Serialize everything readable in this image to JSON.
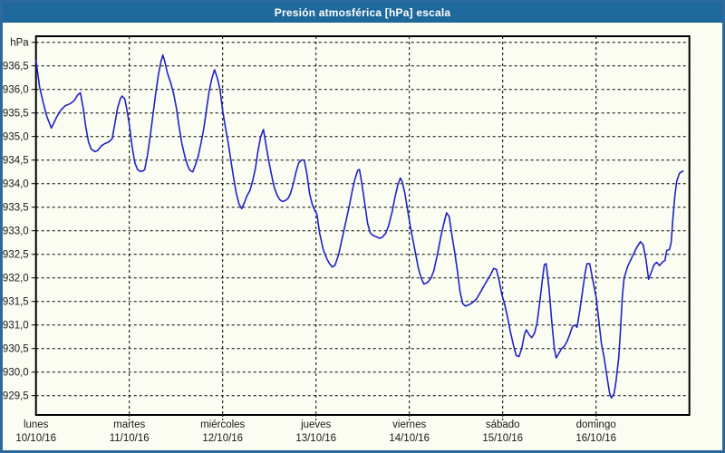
{
  "window": {
    "title": "Presión atmosférica [hPa] escala"
  },
  "chart_data": {
    "type": "line",
    "title": "Presión atmosférica [hPa] escala",
    "ylabel": "hPa",
    "xlabel": "",
    "ylim": [
      929.1,
      937.1
    ],
    "xlim_days": [
      0,
      7
    ],
    "grid": true,
    "legend": "none",
    "y_tick_step_hpa": 0.5,
    "y_gridlines": [
      {
        "value": 937.0,
        "label": "hPa"
      },
      {
        "value": 936.5,
        "label": "936,5"
      },
      {
        "value": 936.0,
        "label": "936,0"
      },
      {
        "value": 935.5,
        "label": "935,5"
      },
      {
        "value": 935.0,
        "label": "935,0"
      },
      {
        "value": 934.5,
        "label": "934,5"
      },
      {
        "value": 934.0,
        "label": "934,0"
      },
      {
        "value": 933.5,
        "label": "933,5"
      },
      {
        "value": 933.0,
        "label": "933,0"
      },
      {
        "value": 932.5,
        "label": "932,5"
      },
      {
        "value": 932.0,
        "label": "932,0"
      },
      {
        "value": 931.5,
        "label": "931,5"
      },
      {
        "value": 931.0,
        "label": "931,0"
      },
      {
        "value": 930.5,
        "label": "930,5"
      },
      {
        "value": 930.0,
        "label": "930,0"
      },
      {
        "value": 929.5,
        "label": "929,5"
      }
    ],
    "days": [
      {
        "name": "lunes",
        "date": "10/10/16"
      },
      {
        "name": "martes",
        "date": "11/10/16"
      },
      {
        "name": "miércoles",
        "date": "12/10/16"
      },
      {
        "name": "jueves",
        "date": "13/10/16"
      },
      {
        "name": "viernes",
        "date": "14/10/16"
      },
      {
        "name": "sábado",
        "date": "15/10/16"
      },
      {
        "name": "domingo",
        "date": "16/10/16"
      }
    ],
    "series": [
      {
        "name": "Presión atmosférica",
        "unit": "hPa",
        "x_unit": "days since Monday 00:00",
        "points": [
          [
            0.0,
            936.62
          ],
          [
            0.039,
            936.05
          ],
          [
            0.078,
            935.72
          ],
          [
            0.117,
            935.42
          ],
          [
            0.165,
            935.18
          ],
          [
            0.194,
            935.3
          ],
          [
            0.223,
            935.42
          ],
          [
            0.262,
            935.55
          ],
          [
            0.311,
            935.65
          ],
          [
            0.369,
            935.7
          ],
          [
            0.408,
            935.76
          ],
          [
            0.447,
            935.88
          ],
          [
            0.476,
            935.93
          ],
          [
            0.505,
            935.62
          ],
          [
            0.534,
            935.2
          ],
          [
            0.563,
            934.88
          ],
          [
            0.592,
            934.73
          ],
          [
            0.631,
            934.68
          ],
          [
            0.66,
            934.7
          ],
          [
            0.699,
            934.8
          ],
          [
            0.738,
            934.85
          ],
          [
            0.777,
            934.88
          ],
          [
            0.816,
            934.95
          ],
          [
            0.845,
            935.27
          ],
          [
            0.874,
            935.6
          ],
          [
            0.903,
            935.8
          ],
          [
            0.922,
            935.86
          ],
          [
            0.951,
            935.8
          ],
          [
            0.981,
            935.5
          ],
          [
            1.0,
            935.25
          ],
          [
            1.029,
            934.8
          ],
          [
            1.058,
            934.45
          ],
          [
            1.087,
            934.3
          ],
          [
            1.117,
            934.26
          ],
          [
            1.146,
            934.27
          ],
          [
            1.165,
            934.3
          ],
          [
            1.194,
            934.6
          ],
          [
            1.223,
            935.0
          ],
          [
            1.252,
            935.45
          ],
          [
            1.282,
            935.9
          ],
          [
            1.311,
            936.3
          ],
          [
            1.34,
            936.6
          ],
          [
            1.359,
            936.73
          ],
          [
            1.379,
            936.6
          ],
          [
            1.408,
            936.35
          ],
          [
            1.447,
            936.12
          ],
          [
            1.476,
            935.9
          ],
          [
            1.505,
            935.6
          ],
          [
            1.534,
            935.2
          ],
          [
            1.563,
            934.85
          ],
          [
            1.592,
            934.6
          ],
          [
            1.621,
            934.4
          ],
          [
            1.65,
            934.28
          ],
          [
            1.68,
            934.25
          ],
          [
            1.709,
            934.4
          ],
          [
            1.738,
            934.58
          ],
          [
            1.767,
            934.85
          ],
          [
            1.796,
            935.15
          ],
          [
            1.825,
            935.55
          ],
          [
            1.854,
            935.95
          ],
          [
            1.883,
            936.22
          ],
          [
            1.913,
            936.42
          ],
          [
            1.942,
            936.25
          ],
          [
            1.971,
            936.0
          ],
          [
            2.0,
            935.55
          ],
          [
            2.029,
            935.2
          ],
          [
            2.058,
            934.88
          ],
          [
            2.087,
            934.5
          ],
          [
            2.117,
            934.12
          ],
          [
            2.146,
            933.8
          ],
          [
            2.175,
            933.57
          ],
          [
            2.204,
            933.47
          ],
          [
            2.233,
            933.6
          ],
          [
            2.262,
            933.75
          ],
          [
            2.291,
            933.85
          ],
          [
            2.32,
            934.05
          ],
          [
            2.35,
            934.32
          ],
          [
            2.379,
            934.7
          ],
          [
            2.408,
            935.0
          ],
          [
            2.437,
            935.15
          ],
          [
            2.466,
            934.8
          ],
          [
            2.495,
            934.47
          ],
          [
            2.524,
            934.18
          ],
          [
            2.553,
            933.92
          ],
          [
            2.583,
            933.76
          ],
          [
            2.612,
            933.66
          ],
          [
            2.641,
            933.62
          ],
          [
            2.67,
            933.64
          ],
          [
            2.699,
            933.68
          ],
          [
            2.728,
            933.8
          ],
          [
            2.757,
            934.0
          ],
          [
            2.786,
            934.25
          ],
          [
            2.815,
            934.44
          ],
          [
            2.845,
            934.5
          ],
          [
            2.874,
            934.5
          ],
          [
            2.903,
            934.2
          ],
          [
            2.932,
            933.78
          ],
          [
            2.961,
            933.55
          ],
          [
            2.99,
            933.42
          ],
          [
            3.01,
            933.35
          ],
          [
            3.039,
            932.95
          ],
          [
            3.078,
            932.6
          ],
          [
            3.117,
            932.4
          ],
          [
            3.146,
            932.3
          ],
          [
            3.175,
            932.23
          ],
          [
            3.204,
            932.27
          ],
          [
            3.243,
            932.5
          ],
          [
            3.282,
            932.85
          ],
          [
            3.32,
            933.2
          ],
          [
            3.359,
            933.55
          ],
          [
            3.388,
            933.85
          ],
          [
            3.417,
            934.1
          ],
          [
            3.447,
            934.28
          ],
          [
            3.466,
            934.3
          ],
          [
            3.495,
            933.95
          ],
          [
            3.524,
            933.55
          ],
          [
            3.553,
            933.15
          ],
          [
            3.583,
            932.95
          ],
          [
            3.612,
            932.9
          ],
          [
            3.65,
            932.87
          ],
          [
            3.68,
            932.84
          ],
          [
            3.709,
            932.86
          ],
          [
            3.748,
            932.95
          ],
          [
            3.777,
            933.1
          ],
          [
            3.816,
            933.4
          ],
          [
            3.845,
            933.7
          ],
          [
            3.874,
            933.95
          ],
          [
            3.903,
            934.12
          ],
          [
            3.922,
            934.05
          ],
          [
            3.951,
            933.8
          ],
          [
            3.981,
            933.45
          ],
          [
            4.01,
            933.1
          ],
          [
            4.039,
            932.8
          ],
          [
            4.068,
            932.5
          ],
          [
            4.097,
            932.2
          ],
          [
            4.126,
            932.0
          ],
          [
            4.155,
            931.87
          ],
          [
            4.194,
            931.9
          ],
          [
            4.233,
            932.0
          ],
          [
            4.262,
            932.15
          ],
          [
            4.301,
            932.5
          ],
          [
            4.34,
            932.9
          ],
          [
            4.369,
            933.15
          ],
          [
            4.398,
            933.38
          ],
          [
            4.427,
            933.3
          ],
          [
            4.456,
            932.9
          ],
          [
            4.485,
            932.55
          ],
          [
            4.515,
            932.15
          ],
          [
            4.544,
            931.7
          ],
          [
            4.573,
            931.45
          ],
          [
            4.602,
            931.4
          ],
          [
            4.641,
            931.43
          ],
          [
            4.68,
            931.48
          ],
          [
            4.718,
            931.55
          ],
          [
            4.757,
            931.68
          ],
          [
            4.796,
            931.82
          ],
          [
            4.835,
            931.95
          ],
          [
            4.874,
            932.08
          ],
          [
            4.903,
            932.2
          ],
          [
            4.932,
            932.18
          ],
          [
            4.961,
            931.95
          ],
          [
            4.99,
            931.65
          ],
          [
            5.019,
            931.45
          ],
          [
            5.049,
            931.2
          ],
          [
            5.078,
            930.9
          ],
          [
            5.117,
            930.55
          ],
          [
            5.146,
            930.35
          ],
          [
            5.175,
            930.33
          ],
          [
            5.204,
            930.5
          ],
          [
            5.233,
            930.8
          ],
          [
            5.252,
            930.9
          ],
          [
            5.282,
            930.8
          ],
          [
            5.311,
            930.73
          ],
          [
            5.34,
            930.82
          ],
          [
            5.369,
            931.05
          ],
          [
            5.398,
            931.5
          ],
          [
            5.427,
            932.0
          ],
          [
            5.447,
            932.28
          ],
          [
            5.466,
            932.3
          ],
          [
            5.495,
            931.8
          ],
          [
            5.524,
            931.1
          ],
          [
            5.553,
            930.5
          ],
          [
            5.573,
            930.3
          ],
          [
            5.602,
            930.4
          ],
          [
            5.631,
            930.5
          ],
          [
            5.66,
            930.55
          ],
          [
            5.689,
            930.65
          ],
          [
            5.718,
            930.8
          ],
          [
            5.748,
            930.97
          ],
          [
            5.777,
            931.0
          ],
          [
            5.796,
            930.95
          ],
          [
            5.825,
            931.3
          ],
          [
            5.854,
            931.7
          ],
          [
            5.883,
            932.1
          ],
          [
            5.903,
            932.3
          ],
          [
            5.932,
            932.3
          ],
          [
            5.961,
            932.0
          ],
          [
            6.0,
            931.6
          ],
          [
            6.029,
            931.1
          ],
          [
            6.058,
            930.6
          ],
          [
            6.087,
            930.3
          ],
          [
            6.117,
            929.9
          ],
          [
            6.146,
            929.55
          ],
          [
            6.165,
            929.45
          ],
          [
            6.194,
            929.55
          ],
          [
            6.214,
            929.8
          ],
          [
            6.243,
            930.3
          ],
          [
            6.262,
            930.9
          ],
          [
            6.282,
            931.6
          ],
          [
            6.301,
            932.0
          ],
          [
            6.34,
            932.25
          ],
          [
            6.388,
            932.45
          ],
          [
            6.437,
            932.65
          ],
          [
            6.476,
            932.77
          ],
          [
            6.505,
            932.7
          ],
          [
            6.534,
            932.4
          ],
          [
            6.563,
            931.97
          ],
          [
            6.592,
            932.12
          ],
          [
            6.621,
            932.28
          ],
          [
            6.65,
            932.33
          ],
          [
            6.68,
            932.26
          ],
          [
            6.709,
            932.33
          ],
          [
            6.738,
            932.37
          ],
          [
            6.757,
            932.58
          ],
          [
            6.786,
            932.6
          ],
          [
            6.805,
            932.75
          ],
          [
            6.825,
            933.3
          ],
          [
            6.845,
            933.75
          ],
          [
            6.864,
            934.05
          ],
          [
            6.893,
            934.22
          ],
          [
            6.932,
            934.27
          ]
        ]
      }
    ],
    "colors": {
      "line": "#2222c4",
      "grid": "#000000",
      "frame": "#000000",
      "background": "#fbfdf2",
      "titlebar_bg": "#1e689b",
      "titlebar_text": "#ffffff",
      "window_border": "#2a6a9d"
    }
  }
}
